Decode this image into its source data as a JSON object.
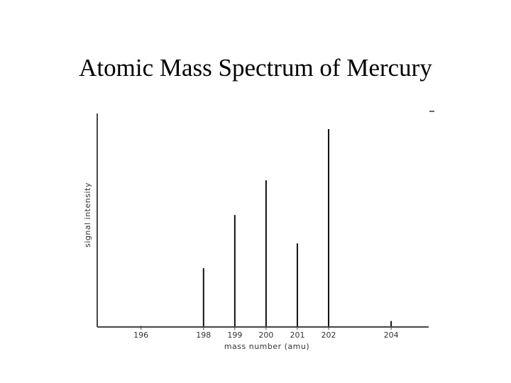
{
  "slide": {
    "title": "Atomic Mass Spectrum of Mercury"
  },
  "chart_data": {
    "type": "bar",
    "title": "Atomic Mass Spectrum of Mercury",
    "xlabel": "mass number (amu)",
    "ylabel": "signal intensity",
    "x_ticks": [
      196,
      198,
      199,
      200,
      201,
      202,
      204
    ],
    "xlim": [
      194.6,
      205.2
    ],
    "ylim": [
      0,
      100
    ],
    "grid": false,
    "legend": "none",
    "series": [
      {
        "x": [
          196,
          198,
          199,
          200,
          201,
          202,
          204
        ],
        "values": [
          0.5,
          29.7,
          56.6,
          74.1,
          42.2,
          100,
          3.0
        ]
      }
    ],
    "colors": {
      "line": "#111111",
      "axis": "#444444",
      "text": "#333333"
    }
  }
}
